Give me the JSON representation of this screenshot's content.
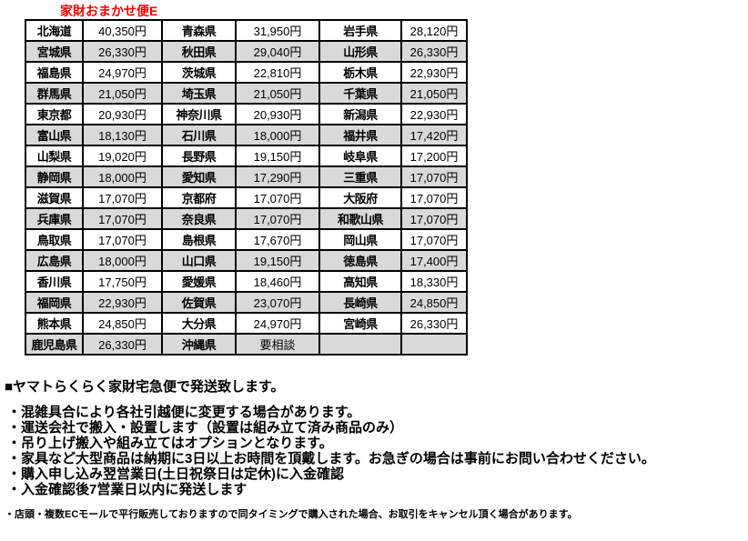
{
  "title": "家財おまかせ便E",
  "colors": {
    "title_red": "#ff0000",
    "row_alt_gray": "#d9d9d9",
    "border_black": "#000000"
  },
  "table": {
    "columns": [
      "prefecture",
      "price",
      "prefecture",
      "price",
      "prefecture",
      "price"
    ],
    "rows": [
      [
        "北海道",
        "40,350円",
        "青森県",
        "31,950円",
        "岩手県",
        "28,120円"
      ],
      [
        "宮城県",
        "26,330円",
        "秋田県",
        "29,040円",
        "山形県",
        "26,330円"
      ],
      [
        "福島県",
        "24,970円",
        "茨城県",
        "22,810円",
        "栃木県",
        "22,930円"
      ],
      [
        "群馬県",
        "21,050円",
        "埼玉県",
        "21,050円",
        "千葉県",
        "21,050円"
      ],
      [
        "東京都",
        "20,930円",
        "神奈川県",
        "20,930円",
        "新潟県",
        "22,930円"
      ],
      [
        "富山県",
        "18,130円",
        "石川県",
        "18,000円",
        "福井県",
        "17,420円"
      ],
      [
        "山梨県",
        "19,020円",
        "長野県",
        "19,150円",
        "岐阜県",
        "17,200円"
      ],
      [
        "静岡県",
        "18,000円",
        "愛知県",
        "17,290円",
        "三重県",
        "17,070円"
      ],
      [
        "滋賀県",
        "17,070円",
        "京都府",
        "17,070円",
        "大阪府",
        "17,070円"
      ],
      [
        "兵庫県",
        "17,070円",
        "奈良県",
        "17,070円",
        "和歌山県",
        "17,070円"
      ],
      [
        "鳥取県",
        "17,070円",
        "島根県",
        "17,670円",
        "岡山県",
        "17,070円"
      ],
      [
        "広島県",
        "18,000円",
        "山口県",
        "19,150円",
        "徳島県",
        "17,400円"
      ],
      [
        "香川県",
        "17,750円",
        "愛媛県",
        "18,460円",
        "高知県",
        "18,330円"
      ],
      [
        "福岡県",
        "22,930円",
        "佐賀県",
        "23,070円",
        "長崎県",
        "24,850円"
      ],
      [
        "熊本県",
        "24,850円",
        "大分県",
        "24,970円",
        "宮崎県",
        "26,330円"
      ],
      [
        "鹿児島県",
        "26,330円",
        "沖縄県",
        "要相談",
        "",
        ""
      ]
    ]
  },
  "notes": {
    "heading": "■ヤマトらくらく家財宅急便で発送致します。",
    "bullets": [
      "・混雑具合により各社引越便に変更する場合があります。",
      "・運送会社で搬入・設置します（設置は組み立て済み商品のみ）",
      "・吊り上げ搬入や組み立てはオプションとなります。",
      "・家具など大型商品は納期に3日以上お時間を頂戴します。お急ぎの場合は事前にお問い合わせください。",
      "・購入申し込み翌営業日(土日祝祭日は定休)に入金確認",
      "・入金確認後7営業日以内に発送します"
    ],
    "footnote": "・店頭・複数ECモールで平行販売しておりますので同タイミングで購入された場合、お取引をキャンセル頂く場合があります。"
  }
}
